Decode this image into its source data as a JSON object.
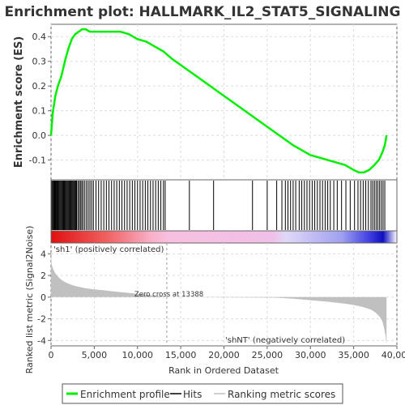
{
  "chart_data": {
    "type": "line",
    "title": "Enrichment plot: HALLMARK_IL2_STAT5_SIGNALING",
    "xlabel": "Rank in Ordered Dataset",
    "top_panel": {
      "ylabel": "Enrichment score (ES)",
      "xlim": [
        0,
        40000
      ],
      "ylim": [
        -0.18,
        0.45
      ],
      "y_ticks": [
        "0.4",
        "0.3",
        "0.2",
        "0.1",
        "0.0",
        "-0.1"
      ],
      "y_tick_values": [
        0.4,
        0.3,
        0.2,
        0.1,
        0.0,
        -0.1
      ],
      "grid": true,
      "series": [
        {
          "name": "Enrichment profile",
          "color": "#00ee00",
          "x": [
            0,
            200,
            500,
            800,
            1200,
            1600,
            2000,
            2400,
            2800,
            3200,
            3600,
            4000,
            4500,
            5000,
            6000,
            7000,
            8000,
            9000,
            10000,
            11000,
            12000,
            13000,
            14000,
            16000,
            18000,
            20000,
            22000,
            24000,
            26000,
            28000,
            30000,
            32000,
            34000,
            35000,
            35600,
            36200,
            36800,
            37400,
            37900,
            38300,
            38600,
            38800
          ],
          "y": [
            0.0,
            0.09,
            0.16,
            0.2,
            0.24,
            0.3,
            0.35,
            0.39,
            0.41,
            0.42,
            0.43,
            0.43,
            0.42,
            0.42,
            0.42,
            0.42,
            0.42,
            0.41,
            0.39,
            0.38,
            0.36,
            0.34,
            0.31,
            0.26,
            0.21,
            0.16,
            0.11,
            0.06,
            0.01,
            -0.04,
            -0.08,
            -0.1,
            -0.12,
            -0.14,
            -0.15,
            -0.15,
            -0.14,
            -0.12,
            -0.1,
            -0.07,
            -0.04,
            0.0
          ]
        }
      ]
    },
    "hits_panel": {
      "legend_label": "Hits",
      "hit_positions": [
        100,
        200,
        300,
        380,
        450,
        520,
        600,
        700,
        780,
        860,
        950,
        1050,
        1150,
        1250,
        1350,
        1450,
        1550,
        1650,
        1750,
        1850,
        1950,
        2050,
        2150,
        2250,
        2350,
        2450,
        2550,
        2650,
        2750,
        2850,
        2950,
        3100,
        3250,
        3400,
        3550,
        3700,
        3900,
        4100,
        4300,
        4500,
        4700,
        4900,
        5200,
        5500,
        5800,
        6100,
        6400,
        6700,
        7000,
        7300,
        7600,
        7900,
        8200,
        8500,
        8800,
        9100,
        9400,
        9700,
        10000,
        10300,
        10600,
        10900,
        11200,
        11500,
        11800,
        12100,
        12400,
        12700,
        13000,
        13200,
        16000,
        18800,
        23300,
        25000,
        26100,
        26700,
        27100,
        27400,
        27700,
        28000,
        28300,
        28700,
        29000,
        29300,
        29600,
        29900,
        30200,
        30500,
        30800,
        31100,
        31400,
        31700,
        32000,
        32300,
        32700,
        33100,
        33600,
        34100,
        34600,
        35100,
        35500,
        35800,
        36100,
        36400,
        36700,
        37000,
        37200,
        37400,
        37600,
        37800,
        38000,
        38200,
        38400,
        38600
      ]
    },
    "metric_panel": {
      "ylabel": "Ranked list metric (Signal2Noise)",
      "legend_label": "Ranking metric scores",
      "ylim": [
        -4.5,
        5
      ],
      "y_ticks": [
        "4",
        "2",
        "0",
        "-2",
        "-4"
      ],
      "y_tick_values": [
        4,
        2,
        0,
        -2,
        -4
      ],
      "zero_cross": 13388,
      "zero_cross_label": "Zero cross at 13388",
      "pos_label": "'sh1' (positively correlated)",
      "neg_label": "'shNT' (negatively correlated)",
      "x": [
        0,
        50,
        150,
        300,
        500,
        800,
        1200,
        1600,
        2000,
        2500,
        3000,
        3500,
        4000,
        5000,
        6000,
        7000,
        8000,
        9000,
        10000,
        11000,
        12000,
        13000,
        13388,
        26000,
        28000,
        30000,
        32000,
        34000,
        35000,
        36000,
        37000,
        37500,
        38000,
        38300,
        38500,
        38700,
        38800
      ],
      "y": [
        4.4,
        3.2,
        2.8,
        2.5,
        2.2,
        1.9,
        1.6,
        1.4,
        1.25,
        1.1,
        1.0,
        0.9,
        0.82,
        0.72,
        0.64,
        0.55,
        0.47,
        0.39,
        0.3,
        0.22,
        0.14,
        0.05,
        0.0,
        -0.05,
        -0.15,
        -0.28,
        -0.42,
        -0.6,
        -0.72,
        -0.9,
        -1.15,
        -1.4,
        -1.8,
        -2.2,
        -2.8,
        -3.6,
        -4.4
      ]
    },
    "x_ticks": [
      "0",
      "5,000",
      "10,000",
      "15,000",
      "20,000",
      "25,000",
      "30,000",
      "35,000",
      "40,000"
    ],
    "x_tick_values": [
      0,
      5000,
      10000,
      15000,
      20000,
      25000,
      30000,
      35000,
      40000
    ],
    "legend": {
      "placement": "bottom",
      "items": [
        "Enrichment profile",
        "Hits",
        "Ranking metric scores"
      ]
    },
    "colors": {
      "enrichment": "#00ee00",
      "hits": "#000000",
      "metric_fill": "#c0c0c0",
      "grid": "#dddddd",
      "pos_label": "#d42020",
      "neg_label": "#4040d0"
    }
  }
}
